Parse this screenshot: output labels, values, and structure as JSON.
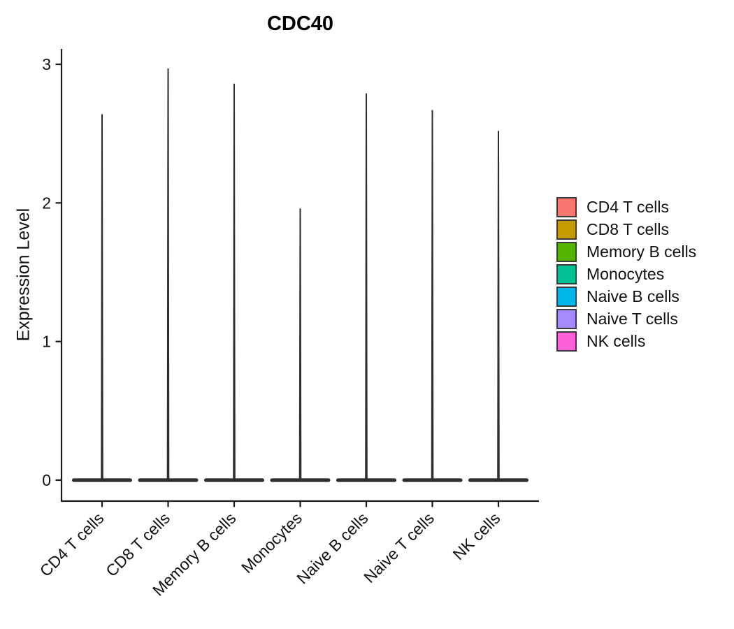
{
  "chart_data": {
    "type": "violin",
    "title": "CDC40",
    "xlabel": "",
    "ylabel": "Expression Level",
    "categories": [
      "CD4 T cells",
      "CD8 T cells",
      "Memory B cells",
      "Monocytes",
      "Naive B cells",
      "Naive T cells",
      "NK cells"
    ],
    "violins": [
      {
        "label": "CD4 T cells",
        "color": "#F8766D",
        "base_value": 0,
        "peak_expression": 2.64
      },
      {
        "label": "CD8 T cells",
        "color": "#C49A00",
        "base_value": 0,
        "peak_expression": 2.97
      },
      {
        "label": "Memory B cells",
        "color": "#53B400",
        "base_value": 0,
        "peak_expression": 2.86
      },
      {
        "label": "Monocytes",
        "color": "#00C094",
        "base_value": 0,
        "peak_expression": 1.96
      },
      {
        "label": "Naive B cells",
        "color": "#00B6EB",
        "base_value": 0,
        "peak_expression": 2.79
      },
      {
        "label": "Naive T cells",
        "color": "#A58AFF",
        "base_value": 0,
        "peak_expression": 2.67
      },
      {
        "label": "NK cells",
        "color": "#FB61D7",
        "base_value": 0,
        "peak_expression": 2.52
      }
    ],
    "yticks": [
      0,
      1,
      2,
      3
    ],
    "ylim": [
      -0.15,
      3.11
    ],
    "grid": false,
    "legend_position": "right"
  },
  "styles": {
    "violin_color": "#2e2e2e",
    "axis_color": "#1a1a1a",
    "text_color": "#111111",
    "legend_key_border": "#3a3a3a",
    "background": "#ffffff"
  }
}
